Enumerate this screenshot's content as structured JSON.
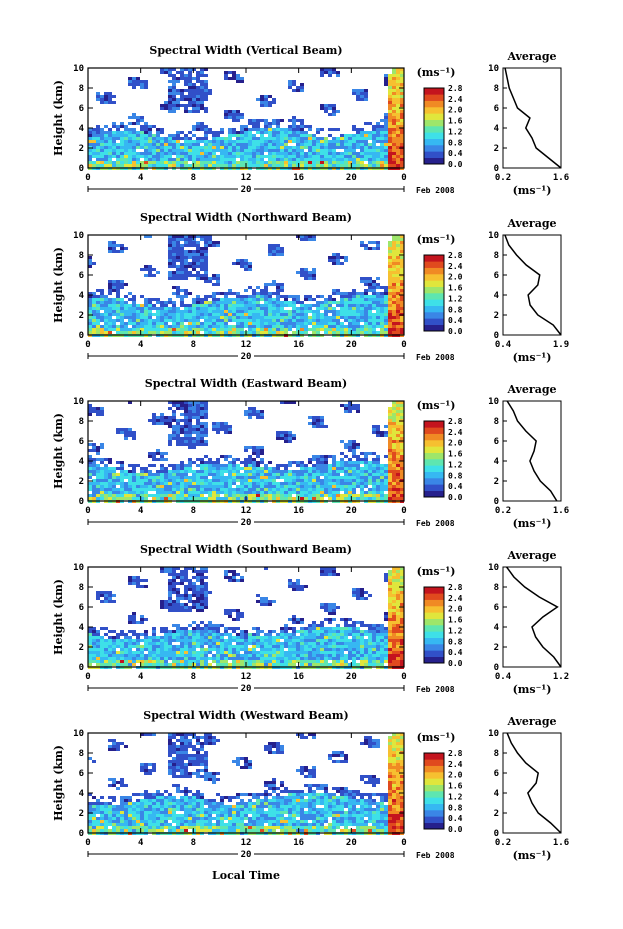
{
  "figure": {
    "bottom_xlabel": "Local Time",
    "month_label": "Feb 2008",
    "date_label": "20",
    "unit_label": "(ms⁻¹)",
    "avg_title": "Average",
    "avg_xunit": "(ms⁻¹)",
    "ylabel": "Height (km)"
  },
  "colors": {
    "scale": [
      "#26208c",
      "#3150c8",
      "#3a86e6",
      "#36b8f2",
      "#3ee0e8",
      "#5ee6b0",
      "#9ee66a",
      "#e0e63c",
      "#f6c030",
      "#f08a24",
      "#e04a1e",
      "#c4141e"
    ]
  },
  "chart_data": [
    {
      "type": "heatmap",
      "title": "Spectral Width (Vertical Beam)",
      "x_ticks": [
        "0",
        "4",
        "8",
        "12",
        "16",
        "20",
        "0"
      ],
      "y_ticks": [
        "0",
        "2",
        "4",
        "6",
        "8",
        "10"
      ],
      "xlim": [
        0,
        24
      ],
      "ylim": [
        0,
        10
      ],
      "colorbar": {
        "ticks": [
          "0.0",
          "0.4",
          "0.8",
          "1.2",
          "1.6",
          "2.0",
          "2.4",
          "2.8"
        ],
        "range": [
          0,
          2.8
        ]
      },
      "average": {
        "x_ticks": [
          "0.2",
          "1.6"
        ],
        "xlim": [
          0.2,
          1.6
        ],
        "heights": [
          0,
          1,
          2,
          3,
          4,
          5,
          6,
          7,
          8,
          9,
          10
        ],
        "values": [
          1.6,
          1.3,
          1.0,
          0.9,
          0.75,
          0.85,
          0.55,
          0.45,
          0.35,
          0.3,
          0.25
        ]
      }
    },
    {
      "type": "heatmap",
      "title": "Spectral Width (Northward Beam)",
      "x_ticks": [
        "0",
        "4",
        "8",
        "12",
        "16",
        "20",
        "0"
      ],
      "y_ticks": [
        "0",
        "2",
        "4",
        "6",
        "8",
        "10"
      ],
      "xlim": [
        0,
        24
      ],
      "ylim": [
        0,
        10
      ],
      "colorbar": {
        "ticks": [
          "0.0",
          "0.4",
          "0.8",
          "1.2",
          "1.6",
          "2.0",
          "2.4",
          "2.8"
        ],
        "range": [
          0,
          2.8
        ]
      },
      "average": {
        "x_ticks": [
          "0.4",
          "1.9"
        ],
        "xlim": [
          0.4,
          1.9
        ],
        "heights": [
          0,
          1,
          2,
          3,
          4,
          5,
          6,
          7,
          8,
          9,
          10
        ],
        "values": [
          1.9,
          1.7,
          1.3,
          1.1,
          1.05,
          1.3,
          1.35,
          1.0,
          0.75,
          0.55,
          0.45
        ]
      }
    },
    {
      "type": "heatmap",
      "title": "Spectral Width (Eastward Beam)",
      "x_ticks": [
        "0",
        "4",
        "8",
        "12",
        "16",
        "20",
        "0"
      ],
      "y_ticks": [
        "0",
        "2",
        "4",
        "6",
        "8",
        "10"
      ],
      "xlim": [
        0,
        24
      ],
      "ylim": [
        0,
        10
      ],
      "colorbar": {
        "ticks": [
          "0.0",
          "0.4",
          "0.8",
          "1.2",
          "1.6",
          "2.0",
          "2.4",
          "2.8"
        ],
        "range": [
          0,
          2.8
        ]
      },
      "average": {
        "x_ticks": [
          "0.2",
          "1.6"
        ],
        "xlim": [
          0.2,
          1.6
        ],
        "heights": [
          0,
          1,
          2,
          3,
          4,
          5,
          6,
          7,
          8,
          9,
          10
        ],
        "values": [
          1.5,
          1.35,
          1.1,
          0.95,
          0.85,
          0.95,
          1.0,
          0.75,
          0.55,
          0.45,
          0.3
        ]
      }
    },
    {
      "type": "heatmap",
      "title": "Spectral Width (Southward Beam)",
      "x_ticks": [
        "0",
        "4",
        "8",
        "12",
        "16",
        "20",
        "0"
      ],
      "y_ticks": [
        "0",
        "2",
        "4",
        "6",
        "8",
        "10"
      ],
      "xlim": [
        0,
        24
      ],
      "ylim": [
        0,
        10
      ],
      "colorbar": {
        "ticks": [
          "0.0",
          "0.4",
          "0.8",
          "1.2",
          "1.6",
          "2.0",
          "2.4",
          "2.8"
        ],
        "range": [
          0,
          2.8
        ]
      },
      "average": {
        "x_ticks": [
          "0.4",
          "1.2"
        ],
        "xlim": [
          0.4,
          1.2
        ],
        "heights": [
          0,
          1,
          2,
          3,
          4,
          5,
          6,
          7,
          8,
          9,
          10
        ],
        "values": [
          1.2,
          1.1,
          0.95,
          0.85,
          0.8,
          0.95,
          1.15,
          0.9,
          0.7,
          0.55,
          0.45
        ]
      }
    },
    {
      "type": "heatmap",
      "title": "Spectral Width (Westward Beam)",
      "x_ticks": [
        "0",
        "4",
        "8",
        "12",
        "16",
        "20",
        "0"
      ],
      "y_ticks": [
        "0",
        "2",
        "4",
        "6",
        "8",
        "10"
      ],
      "xlim": [
        0,
        24
      ],
      "ylim": [
        0,
        10
      ],
      "colorbar": {
        "ticks": [
          "0.0",
          "0.4",
          "0.8",
          "1.2",
          "1.6",
          "2.0",
          "2.4",
          "2.8"
        ],
        "range": [
          0,
          2.8
        ]
      },
      "average": {
        "x_ticks": [
          "0.2",
          "1.6"
        ],
        "xlim": [
          0.2,
          1.6
        ],
        "heights": [
          0,
          1,
          2,
          3,
          4,
          5,
          6,
          7,
          8,
          9,
          10
        ],
        "values": [
          1.6,
          1.35,
          1.05,
          0.9,
          0.8,
          1.0,
          1.05,
          0.75,
          0.55,
          0.4,
          0.3
        ]
      }
    }
  ]
}
